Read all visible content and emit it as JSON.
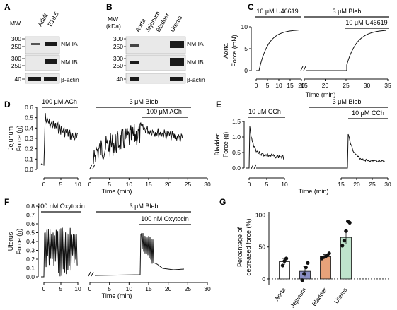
{
  "panels": {
    "A": {
      "label": "A",
      "mw_title": "MW",
      "columns": [
        "Adult",
        "E18.5"
      ],
      "mw_markers": [
        "300",
        "250",
        "300",
        "250",
        "40"
      ],
      "rows": [
        "NMIIA",
        "NMIIB",
        "β-actin"
      ]
    },
    "B": {
      "label": "B",
      "mw_title": "MW\n(kDa)",
      "mw_title_line1": "MW",
      "mw_title_line2": "(kDa)",
      "columns": [
        "Aorta",
        "Jejunum",
        "Bladder",
        "Uterus"
      ],
      "mw_markers": [
        "300",
        "250",
        "300",
        "250",
        "40"
      ],
      "rows": [
        "NMIIA",
        "NMIIB",
        "β-actin"
      ]
    },
    "C": {
      "label": "C",
      "ylabel_line1": "Aorta",
      "ylabel_line2": "Force (mN)",
      "xlabel": "Time (min)",
      "treatment1": "10 μM U46619",
      "treatment2": "3 μM Bleb",
      "treatment3": "10 μM U46619",
      "yticks": [
        "0",
        "5",
        "10"
      ],
      "xticks_left": [
        "0",
        "5",
        "10",
        "15",
        "20"
      ],
      "xticks_right": [
        "15",
        "20",
        "25",
        "30",
        "35"
      ]
    },
    "D": {
      "label": "D",
      "ylabel_line1": "Jejunum",
      "ylabel_line2": "Force (g)",
      "xlabel": "Time (min)",
      "treatment1": "100 μM ACh",
      "treatment2": "3 μM Bleb",
      "treatment3": "100 μM ACh",
      "yticks": [
        "0.0",
        "0.1",
        "0.2",
        "0.3",
        "0.4",
        "0.5",
        "0.6"
      ],
      "xticks_left": [
        "0",
        "5",
        "10"
      ],
      "xticks_right": [
        "0",
        "5",
        "10",
        "15",
        "20",
        "25",
        "30"
      ]
    },
    "E": {
      "label": "E",
      "ylabel_line1": "Bladder",
      "ylabel_line2": "Force (g)",
      "xlabel": "Time (min)",
      "treatment1": "10 μM CCh",
      "treatment2": "3 μM Bleb",
      "treatment3": "10 μM CCh",
      "yticks": [
        "0.0",
        "0.5",
        "1.0",
        "1.5"
      ],
      "xticks_left": [
        "0",
        "5",
        "10"
      ],
      "xticks_right": [
        "15",
        "20",
        "25",
        "30"
      ]
    },
    "F": {
      "label": "F",
      "ylabel_line1": "Uterus",
      "ylabel_line2": "Force (g)",
      "xlabel": "Time (min)",
      "treatment1": "100 nM Oxytocin",
      "treatment2": "3 μM Bleb",
      "treatment3": "100 nM Oxytocin",
      "yticks": [
        "0.0",
        "0.1",
        "0.2",
        "0.3",
        "0.4",
        "0.5",
        "0.6",
        "0.7",
        "0.8"
      ],
      "xticks_left": [
        "0",
        "5",
        "10"
      ],
      "xticks_right": [
        "0",
        "5",
        "10",
        "15",
        "20",
        "25",
        "30"
      ]
    },
    "G": {
      "label": "G",
      "ylabel_line1": "Percentage of",
      "ylabel_line2": "decreased force (%)"
    }
  },
  "chart_data": {
    "type": "bar",
    "categories": [
      "Aorta",
      "Jejunum",
      "Bladder",
      "Uterus"
    ],
    "values": [
      27,
      12,
      35,
      65
    ],
    "errors": [
      5,
      8,
      3,
      10
    ],
    "colors": [
      "#ffffff",
      "#8a8fc4",
      "#e7a27a",
      "#bfe3cc"
    ],
    "points": [
      [
        21,
        28,
        32
      ],
      [
        -2,
        8,
        18,
        25
      ],
      [
        32,
        34,
        35,
        37,
        40
      ],
      [
        52,
        60,
        75,
        90,
        88
      ]
    ],
    "yticks": [
      0,
      50,
      100
    ],
    "ylim": [
      -10,
      105
    ],
    "ylabel": "Percentage of decreased force (%)"
  }
}
